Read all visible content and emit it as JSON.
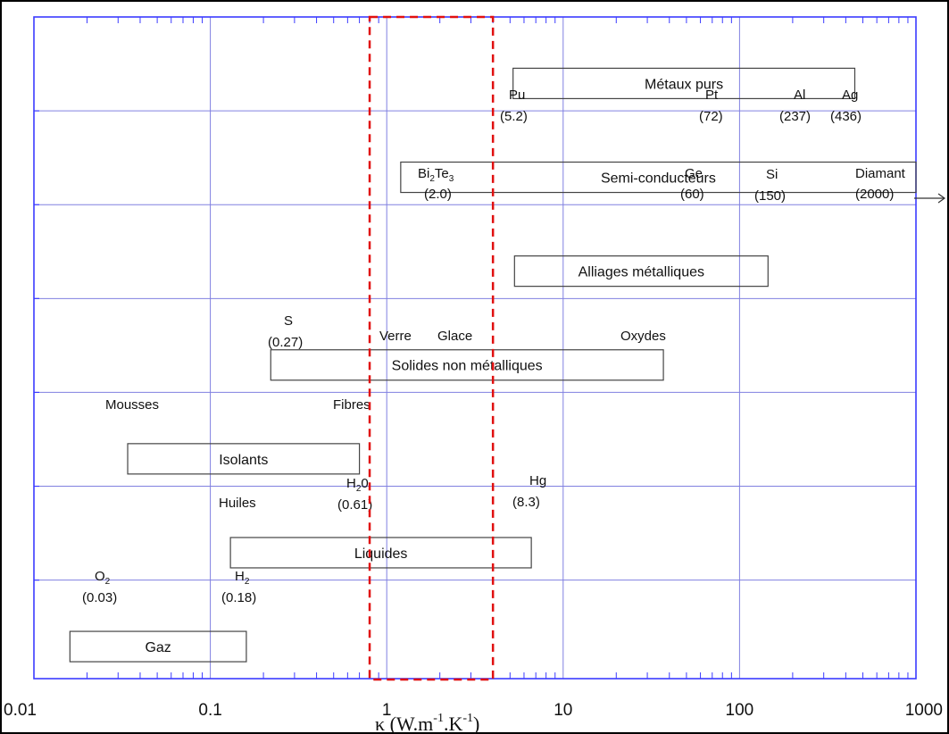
{
  "chart_data": {
    "type": "range-bar",
    "x_scale": "log",
    "xlim": [
      0.01,
      1000
    ],
    "xticks": [
      "0.01",
      "0.1",
      "1",
      "10",
      "100",
      "1000"
    ],
    "xlabel_parts": {
      "k": "κ (W.m",
      "e1": "-1",
      "mid": ".K",
      "e2": "-1",
      "close": ")"
    },
    "grid": true,
    "highlight": {
      "x_range": [
        0.8,
        4.0
      ],
      "style": "red dashed"
    },
    "categories": [
      {
        "label": "Métaux purs",
        "min": 5.2,
        "max": 450
      },
      {
        "label": "Semi-conducteurs",
        "min": 1.2,
        "max": 1000
      },
      {
        "label": "Alliages métalliques",
        "min": 5.3,
        "max": 145
      },
      {
        "label": "Solides non métalliques",
        "min": 0.22,
        "max": 37
      },
      {
        "label": "Isolants",
        "min": 0.034,
        "max": 0.7
      },
      {
        "label": "Liquides",
        "min": 0.13,
        "max": 6.6
      },
      {
        "label": "Gaz",
        "min": 0.016,
        "max": 0.16
      }
    ],
    "annotations": [
      {
        "name": "Pu",
        "value": "(5.2)"
      },
      {
        "name": "Pt",
        "value": "(72)"
      },
      {
        "name": "Al",
        "value": "(237)"
      },
      {
        "name": "Ag",
        "value": "(436)"
      },
      {
        "name_parts": [
          "Bi",
          "2",
          "Te",
          "3"
        ],
        "value": "(2.0)"
      },
      {
        "name": "Ge",
        "value": "(60)"
      },
      {
        "name": "Si",
        "value": "(150)"
      },
      {
        "name": "Diamant",
        "value": "(2000)"
      },
      {
        "name": "S",
        "value": "(0.27)"
      },
      {
        "name": "Verre"
      },
      {
        "name": "Glace"
      },
      {
        "name": "Oxydes"
      },
      {
        "name": "Mousses"
      },
      {
        "name": "Fibres"
      },
      {
        "name_parts": [
          "H",
          "2",
          "0"
        ],
        "value": "(0.61)"
      },
      {
        "name": "Huiles"
      },
      {
        "name": "Hg",
        "value": "(8.3)"
      },
      {
        "name_parts": [
          "O",
          "2"
        ],
        "value": "(0.03)"
      },
      {
        "name_parts": [
          "H",
          "2"
        ],
        "value": "(0.18)"
      }
    ],
    "colors": {
      "grid": "#8080e0",
      "axis": "#3b3bff",
      "highlight": "#e01010",
      "box": "#444444"
    }
  }
}
